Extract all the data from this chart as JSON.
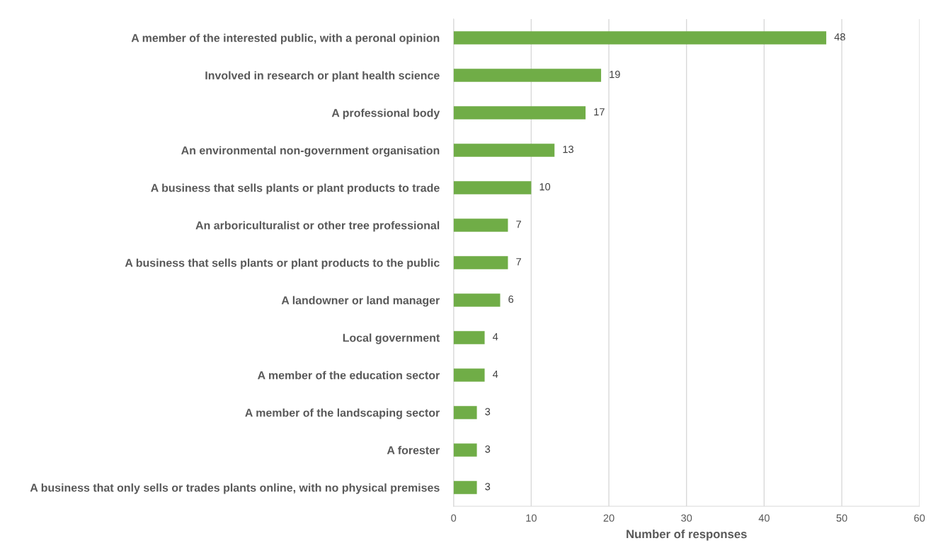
{
  "chart_data": {
    "type": "bar",
    "orientation": "horizontal",
    "xlabel": "Number of responses",
    "categories": [
      "A member of the interested public, with a peronal opinion",
      "Involved in research or plant health science",
      "A professional body",
      "An environmental non-government organisation",
      "A business that sells plants or plant products to trade",
      "An arboriculturalist or other tree professional",
      "A business that sells plants or plant products to the public",
      "A landowner or land manager",
      "Local government",
      "A member of the education sector",
      "A member of the landscaping sector",
      "A forester",
      "A business that only sells or trades plants online, with no physical premises"
    ],
    "values": [
      48,
      19,
      17,
      13,
      10,
      7,
      7,
      6,
      4,
      4,
      3,
      3,
      3
    ],
    "color": "#70ad47",
    "xlim": [
      0,
      60
    ],
    "xticks": [
      0,
      10,
      20,
      30,
      40,
      50,
      60
    ],
    "grid": "x",
    "data_labels": true
  }
}
